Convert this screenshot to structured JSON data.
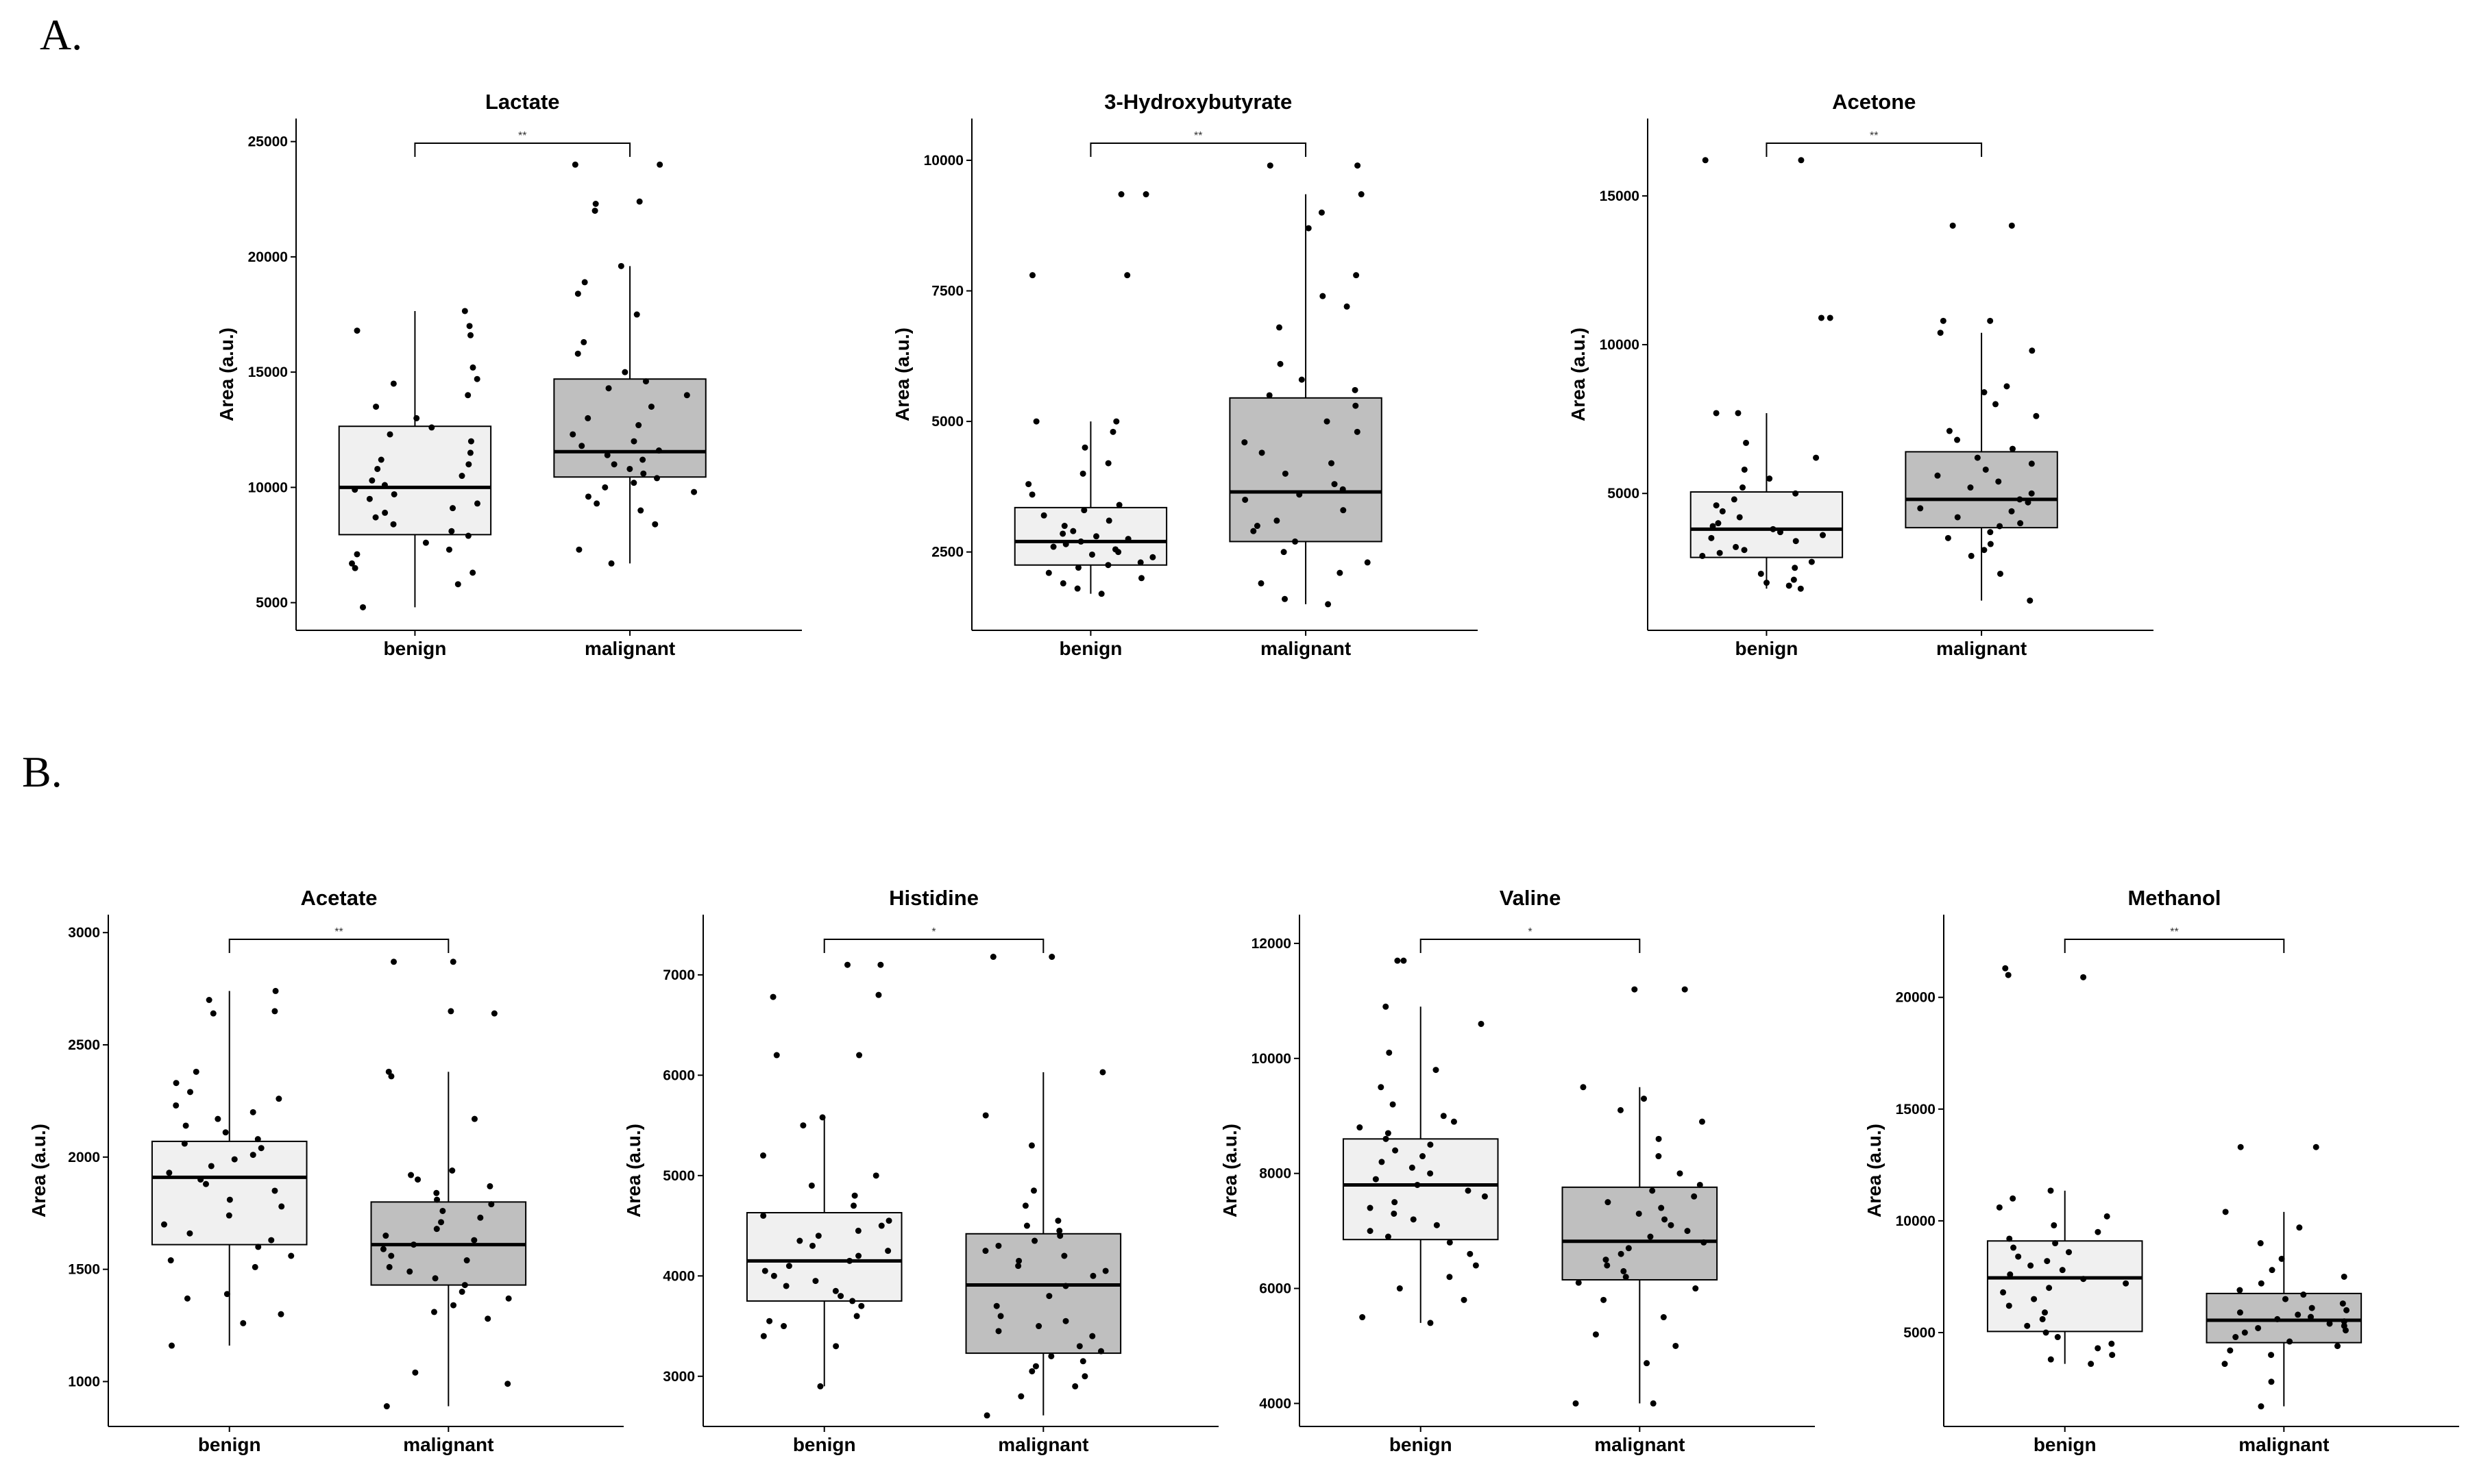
{
  "panels": [
    {
      "label": "A."
    },
    {
      "label": "B."
    }
  ],
  "chart_data": [
    {
      "type": "box",
      "panel": "A",
      "title": "Lactate",
      "ylabel": "Area (a.u.)",
      "categories": [
        "benign",
        "malignant"
      ],
      "ylim": [
        3800,
        26000
      ],
      "yticks": [
        5000,
        10000,
        15000,
        20000,
        25000
      ],
      "significance": "**",
      "boxes": [
        {
          "q1": 7950,
          "median": 10000,
          "q3": 12650,
          "whisker_low": 4800,
          "whisker_high": 17650,
          "fill": "#f0f0f0",
          "points": [
            4800,
            5800,
            6300,
            6500,
            6700,
            7100,
            7300,
            7600,
            7900,
            8100,
            8400,
            8700,
            8900,
            9100,
            9300,
            9500,
            9700,
            9900,
            10100,
            10300,
            10500,
            10800,
            11000,
            11200,
            11500,
            12000,
            12300,
            12600,
            13000,
            13500,
            14000,
            14500,
            14700,
            15200,
            16600,
            16800,
            17000,
            17650
          ]
        },
        {
          "q1": 10450,
          "median": 11550,
          "q3": 14700,
          "whisker_low": 6700,
          "whisker_high": 19600,
          "fill": "#bfbfbf",
          "points": [
            6700,
            7300,
            8400,
            9000,
            9300,
            9600,
            9800,
            10000,
            10200,
            10400,
            10600,
            10800,
            11000,
            11200,
            11400,
            11600,
            11800,
            12000,
            12300,
            12700,
            13000,
            13500,
            14000,
            14300,
            14600,
            15000,
            15800,
            16300,
            17500,
            18400,
            18900,
            19600,
            22000,
            22300,
            22400,
            24000,
            24000
          ]
        }
      ]
    },
    {
      "type": "box",
      "panel": "A",
      "title": "3-Hydroxybutyrate",
      "ylabel": "Area (a.u.)",
      "categories": [
        "benign",
        "malignant"
      ],
      "ylim": [
        1000,
        10800
      ],
      "yticks": [
        2500,
        5000,
        7500,
        10000
      ],
      "significance": "**",
      "boxes": [
        {
          "q1": 2250,
          "median": 2700,
          "q3": 3350,
          "whisker_low": 1700,
          "whisker_high": 5000,
          "fill": "#f0f0f0",
          "points": [
            1700,
            1800,
            1900,
            2000,
            2100,
            2200,
            2250,
            2300,
            2400,
            2450,
            2500,
            2550,
            2600,
            2650,
            2700,
            2750,
            2800,
            2850,
            2900,
            3000,
            3100,
            3200,
            3300,
            3400,
            3600,
            3800,
            4000,
            4200,
            4500,
            4800,
            5000,
            5000,
            7800,
            7800,
            9350,
            9350
          ]
        },
        {
          "q1": 2700,
          "median": 3650,
          "q3": 5450,
          "whisker_low": 1500,
          "whisker_high": 9350,
          "fill": "#bfbfbf",
          "points": [
            1500,
            1600,
            1900,
            2100,
            2300,
            2500,
            2700,
            2900,
            3000,
            3100,
            3300,
            3500,
            3600,
            3700,
            3800,
            4000,
            4200,
            4400,
            4600,
            4800,
            5000,
            5300,
            5500,
            5600,
            5800,
            6100,
            6800,
            7200,
            7400,
            7800,
            8700,
            9000,
            9350,
            9900,
            9900
          ]
        }
      ]
    },
    {
      "type": "box",
      "panel": "A",
      "title": "Acetone",
      "ylabel": "Area (a.u.)",
      "categories": [
        "benign",
        "malignant"
      ],
      "ylim": [
        400,
        17600
      ],
      "yticks": [
        5000,
        10000,
        15000
      ],
      "significance": "**",
      "boxes": [
        {
          "q1": 2850,
          "median": 3800,
          "q3": 5050,
          "whisker_low": 1800,
          "whisker_high": 7700,
          "fill": "#f0f0f0",
          "points": [
            1800,
            1900,
            2000,
            2100,
            2300,
            2500,
            2700,
            2900,
            3000,
            3100,
            3200,
            3400,
            3500,
            3600,
            3700,
            3800,
            3900,
            4000,
            4200,
            4400,
            4600,
            4800,
            5000,
            5200,
            5500,
            5800,
            6200,
            6700,
            7700,
            7700,
            10900,
            10900,
            16200,
            16200
          ]
        },
        {
          "q1": 3850,
          "median": 4800,
          "q3": 6400,
          "whisker_low": 1400,
          "whisker_high": 10400,
          "fill": "#bfbfbf",
          "points": [
            1400,
            2300,
            2900,
            3100,
            3300,
            3500,
            3700,
            3900,
            4000,
            4200,
            4400,
            4500,
            4700,
            4800,
            5000,
            5200,
            5400,
            5600,
            5800,
            6000,
            6200,
            6500,
            6800,
            7100,
            7600,
            8000,
            8400,
            8600,
            9800,
            10400,
            10800,
            10800,
            14000,
            14000
          ]
        }
      ]
    },
    {
      "type": "box",
      "panel": "B",
      "title": "Acetate",
      "ylabel": "Area (a.u.)",
      "categories": [
        "benign",
        "malignant"
      ],
      "ylim": [
        800,
        3080
      ],
      "yticks": [
        1000,
        1500,
        2000,
        2500,
        3000
      ],
      "significance": "**",
      "boxes": [
        {
          "q1": 1610,
          "median": 1910,
          "q3": 2070,
          "whisker_low": 1160,
          "whisker_high": 2740,
          "fill": "#f0f0f0",
          "points": [
            1160,
            1260,
            1300,
            1370,
            1390,
            1510,
            1540,
            1560,
            1600,
            1630,
            1660,
            1700,
            1740,
            1780,
            1810,
            1850,
            1880,
            1900,
            1930,
            1960,
            1990,
            2010,
            2040,
            2060,
            2080,
            2110,
            2140,
            2170,
            2200,
            2230,
            2260,
            2290,
            2330,
            2380,
            2640,
            2650,
            2700,
            2740
          ]
        },
        {
          "q1": 1430,
          "median": 1610,
          "q3": 1800,
          "whisker_low": 890,
          "whisker_high": 2380,
          "fill": "#bfbfbf",
          "points": [
            890,
            990,
            1040,
            1280,
            1310,
            1340,
            1370,
            1400,
            1430,
            1460,
            1490,
            1510,
            1540,
            1560,
            1590,
            1610,
            1630,
            1650,
            1680,
            1710,
            1730,
            1760,
            1790,
            1810,
            1840,
            1870,
            1900,
            1920,
            1940,
            2170,
            2360,
            2380,
            2640,
            2650,
            2870,
            2870
          ]
        }
      ]
    },
    {
      "type": "box",
      "panel": "B",
      "title": "Histidine",
      "ylabel": "Area (a.u.)",
      "categories": [
        "benign",
        "malignant"
      ],
      "ylim": [
        2500,
        7600
      ],
      "yticks": [
        3000,
        4000,
        5000,
        6000,
        7000
      ],
      "significance": "*",
      "boxes": [
        {
          "q1": 3750,
          "median": 4150,
          "q3": 4630,
          "whisker_low": 2900,
          "whisker_high": 5580,
          "fill": "#f0f0f0",
          "points": [
            2900,
            3300,
            3400,
            3500,
            3550,
            3600,
            3700,
            3750,
            3800,
            3850,
            3900,
            3950,
            4000,
            4050,
            4100,
            4150,
            4200,
            4250,
            4300,
            4350,
            4400,
            4450,
            4500,
            4550,
            4600,
            4700,
            4800,
            4900,
            5000,
            5200,
            5500,
            5580,
            6200,
            6200,
            6800,
            6780,
            7100,
            7100
          ]
        },
        {
          "q1": 3230,
          "median": 3910,
          "q3": 4420,
          "whisker_low": 2610,
          "whisker_high": 6030,
          "fill": "#bfbfbf",
          "points": [
            2610,
            2800,
            2900,
            3000,
            3050,
            3100,
            3150,
            3200,
            3250,
            3300,
            3400,
            3450,
            3500,
            3550,
            3600,
            3700,
            3800,
            3900,
            4000,
            4050,
            4100,
            4150,
            4200,
            4250,
            4300,
            4350,
            4400,
            4450,
            4500,
            4550,
            4700,
            4850,
            5300,
            5600,
            6030,
            7180,
            7180
          ]
        }
      ]
    },
    {
      "type": "box",
      "panel": "B",
      "title": "Valine",
      "ylabel": "Area (a.u.)",
      "categories": [
        "benign",
        "malignant"
      ],
      "ylim": [
        3600,
        12500
      ],
      "yticks": [
        4000,
        6000,
        8000,
        10000,
        12000
      ],
      "significance": "*",
      "boxes": [
        {
          "q1": 6850,
          "median": 7800,
          "q3": 8600,
          "whisker_low": 5400,
          "whisker_high": 10900,
          "fill": "#f0f0f0",
          "points": [
            5400,
            5500,
            5800,
            6000,
            6200,
            6400,
            6600,
            6800,
            6900,
            7000,
            7100,
            7200,
            7300,
            7400,
            7500,
            7600,
            7700,
            7800,
            7900,
            8000,
            8100,
            8200,
            8300,
            8400,
            8500,
            8600,
            8700,
            8800,
            8900,
            9000,
            9200,
            9500,
            9800,
            10100,
            10600,
            10900,
            11700,
            11700
          ]
        },
        {
          "q1": 6150,
          "median": 6820,
          "q3": 7760,
          "whisker_low": 4000,
          "whisker_high": 9500,
          "fill": "#bfbfbf",
          "points": [
            4000,
            4000,
            4700,
            5000,
            5200,
            5500,
            5800,
            6000,
            6100,
            6200,
            6300,
            6400,
            6500,
            6600,
            6700,
            6800,
            6900,
            7000,
            7100,
            7200,
            7300,
            7400,
            7500,
            7600,
            7700,
            7800,
            8000,
            8300,
            8600,
            8900,
            9100,
            9300,
            9500,
            11200,
            11200
          ]
        }
      ]
    },
    {
      "type": "box",
      "panel": "B",
      "title": "Methanol",
      "ylabel": "Area (a.u.)",
      "categories": [
        "benign",
        "malignant"
      ],
      "ylim": [
        800,
        23700
      ],
      "yticks": [
        5000,
        10000,
        15000,
        20000
      ],
      "significance": "**",
      "boxes": [
        {
          "q1": 5050,
          "median": 7450,
          "q3": 9100,
          "whisker_low": 3600,
          "whisker_high": 11350,
          "fill": "#f0f0f0",
          "points": [
            3600,
            3800,
            4000,
            4300,
            4500,
            4800,
            5000,
            5300,
            5600,
            5900,
            6200,
            6500,
            6800,
            7000,
            7200,
            7400,
            7600,
            7800,
            8000,
            8200,
            8400,
            8600,
            8800,
            9000,
            9200,
            9500,
            9800,
            10200,
            10600,
            11000,
            11350,
            20900,
            21000,
            21300
          ]
        },
        {
          "q1": 4550,
          "median": 5550,
          "q3": 6750,
          "whisker_low": 1700,
          "whisker_high": 10400,
          "fill": "#bfbfbf",
          "points": [
            1700,
            2800,
            3600,
            4000,
            4200,
            4400,
            4600,
            4800,
            5000,
            5100,
            5200,
            5300,
            5400,
            5500,
            5600,
            5700,
            5800,
            5900,
            6000,
            6100,
            6300,
            6500,
            6700,
            6900,
            7200,
            7500,
            7800,
            8300,
            9000,
            9700,
            10400,
            13300,
            13300
          ]
        }
      ]
    }
  ]
}
